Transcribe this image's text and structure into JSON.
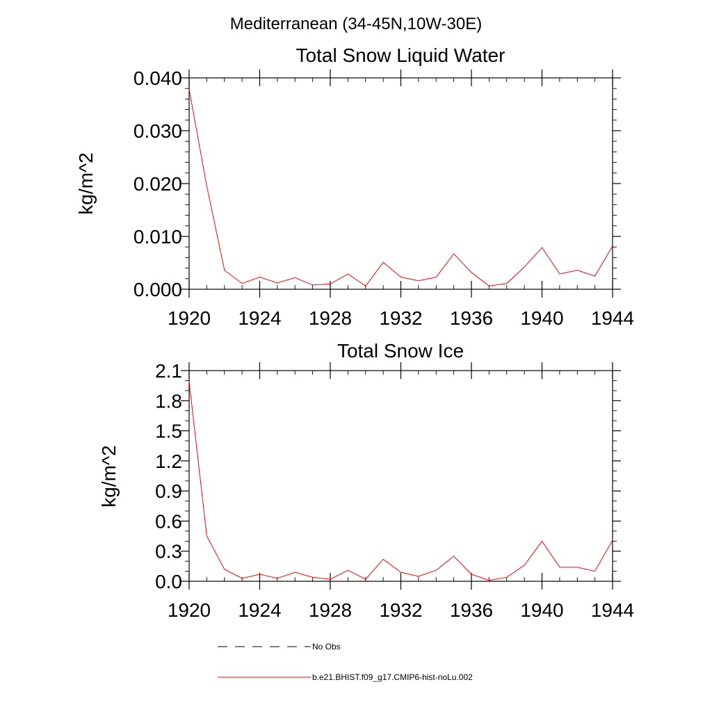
{
  "figure": {
    "title": "Mediterranean (34-45N,10W-30E)"
  },
  "chart_data": [
    {
      "type": "line",
      "title": "Total Snow Liquid Water",
      "xlabel": "",
      "ylabel": "kg/m^2",
      "xlim": [
        1920,
        1944
      ],
      "ylim": [
        0.0,
        0.04
      ],
      "xticks": [
        1920,
        1924,
        1928,
        1932,
        1936,
        1940,
        1944
      ],
      "xtick_labels": [
        "1920",
        "1924",
        "1928",
        "1932",
        "1936",
        "1940",
        "1944"
      ],
      "yticks": [
        0.0,
        0.01,
        0.02,
        0.03,
        0.04
      ],
      "ytick_labels": [
        "0.000",
        "0.010",
        "0.020",
        "0.030",
        "0.040"
      ],
      "y_minor_step": 0.002,
      "x_minor_step": 1,
      "grid": false,
      "x": [
        1920,
        1921,
        1922,
        1923,
        1924,
        1925,
        1926,
        1927,
        1928,
        1929,
        1930,
        1931,
        1932,
        1933,
        1934,
        1935,
        1936,
        1937,
        1938,
        1939,
        1940,
        1941,
        1942,
        1943,
        1944
      ],
      "series": [
        {
          "name": "b.e21.BHIST.f09_g17.CMIP6-hist-noLu.002",
          "color": "#ff0000",
          "values": [
            0.0378,
            0.0195,
            0.0036,
            0.0011,
            0.0023,
            0.0012,
            0.0022,
            0.0008,
            0.001,
            0.0029,
            0.0006,
            0.0051,
            0.0023,
            0.0016,
            0.0023,
            0.0067,
            0.0032,
            0.0006,
            0.0011,
            0.0042,
            0.0079,
            0.0029,
            0.0036,
            0.0025,
            0.0082
          ]
        }
      ]
    },
    {
      "type": "line",
      "title": "Total Snow Ice",
      "xlabel": "",
      "ylabel": "kg/m^2",
      "xlim": [
        1920,
        1944
      ],
      "ylim": [
        0.0,
        2.1
      ],
      "xticks": [
        1920,
        1924,
        1928,
        1932,
        1936,
        1940,
        1944
      ],
      "xtick_labels": [
        "1920",
        "1924",
        "1928",
        "1932",
        "1936",
        "1940",
        "1944"
      ],
      "yticks": [
        0.0,
        0.3,
        0.6,
        0.9,
        1.2,
        1.5,
        1.8,
        2.1
      ],
      "ytick_labels": [
        "0.0",
        "0.3",
        "0.6",
        "0.9",
        "1.2",
        "1.5",
        "1.8",
        "2.1"
      ],
      "y_minor_step": 0.1,
      "x_minor_step": 1,
      "grid": false,
      "x": [
        1920,
        1921,
        1922,
        1923,
        1924,
        1925,
        1926,
        1927,
        1928,
        1929,
        1930,
        1931,
        1932,
        1933,
        1934,
        1935,
        1936,
        1937,
        1938,
        1939,
        1940,
        1941,
        1942,
        1943,
        1944
      ],
      "series": [
        {
          "name": "b.e21.BHIST.f09_g17.CMIP6-hist-noLu.002",
          "color": "#ff0000",
          "values": [
            1.99,
            0.45,
            0.12,
            0.03,
            0.07,
            0.03,
            0.09,
            0.04,
            0.02,
            0.11,
            0.02,
            0.22,
            0.09,
            0.05,
            0.11,
            0.25,
            0.07,
            0.01,
            0.04,
            0.16,
            0.4,
            0.14,
            0.14,
            0.1,
            0.41
          ]
        }
      ]
    }
  ],
  "legend": {
    "placement": "bottom-center",
    "entries": [
      {
        "label": "No Obs",
        "color": "#000000",
        "style": "dashed"
      },
      {
        "label": "b.e21.BHIST.f09_g17.CMIP6-hist-noLu.002",
        "color": "#ff0000",
        "style": "solid"
      }
    ]
  }
}
